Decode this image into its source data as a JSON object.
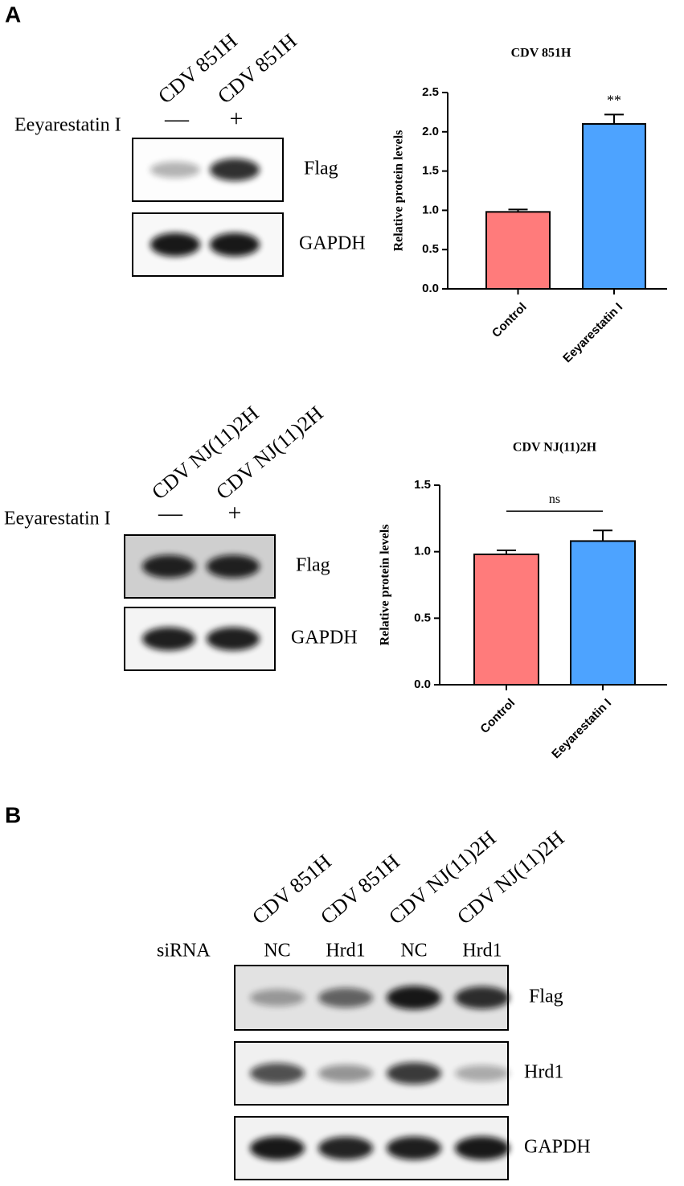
{
  "panel_labels": [
    "A",
    "B"
  ],
  "blots": [
    {
      "lanes": [
        "CDV 851H",
        "CDV 851H"
      ],
      "row_label": "Eeyarestatin I",
      "lane_marks": [
        "—",
        "+"
      ],
      "bands": [
        "Flag",
        "GAPDH"
      ]
    },
    {
      "lanes": [
        "CDV NJ(11)2H",
        "CDV NJ(11)2H"
      ],
      "row_label": "Eeyarestatin I",
      "lane_marks": [
        "—",
        "+"
      ],
      "bands": [
        "Flag",
        "GAPDH"
      ]
    },
    {
      "lanes": [
        "CDV 851H",
        "CDV 851H",
        "CDV NJ(11)2H",
        "CDV NJ(11)2H"
      ],
      "row_label": "siRNA",
      "lane_marks": [
        "NC",
        "Hrd1",
        "NC",
        "Hrd1"
      ],
      "bands": [
        "Flag",
        "Hrd1",
        "GAPDH"
      ]
    }
  ],
  "chart_data": [
    {
      "type": "bar",
      "title": "CDV 851H",
      "y_label": "Relative protein levels",
      "categories": [
        "Control",
        "Eeyarestatin I"
      ],
      "values": [
        0.98,
        2.1
      ],
      "errors": [
        0.03,
        0.12
      ],
      "colors": [
        "#ff7b7b",
        "#4da3ff"
      ],
      "annotation": "**",
      "ylim": [
        0,
        2.5
      ],
      "yticks": [
        {
          "value": 0,
          "label": "0.0"
        },
        0.5,
        {
          "value": 1,
          "label": "1.0"
        },
        1.5,
        {
          "value": 2,
          "label": "2.0"
        },
        2.5
      ]
    },
    {
      "type": "bar",
      "title": "CDV NJ(11)2H",
      "y_label": "Relative protein levels",
      "categories": [
        "Control",
        "Eeyarestatin I"
      ],
      "values": [
        0.98,
        1.08
      ],
      "errors": [
        0.03,
        0.08
      ],
      "colors": [
        "#ff7b7b",
        "#4da3ff"
      ],
      "annotation": "ns",
      "ylim": [
        0,
        1.5
      ],
      "yticks": [
        {
          "value": 0,
          "label": "0.0"
        },
        0.5,
        {
          "value": 1,
          "label": "1.0"
        },
        1.5
      ]
    }
  ]
}
